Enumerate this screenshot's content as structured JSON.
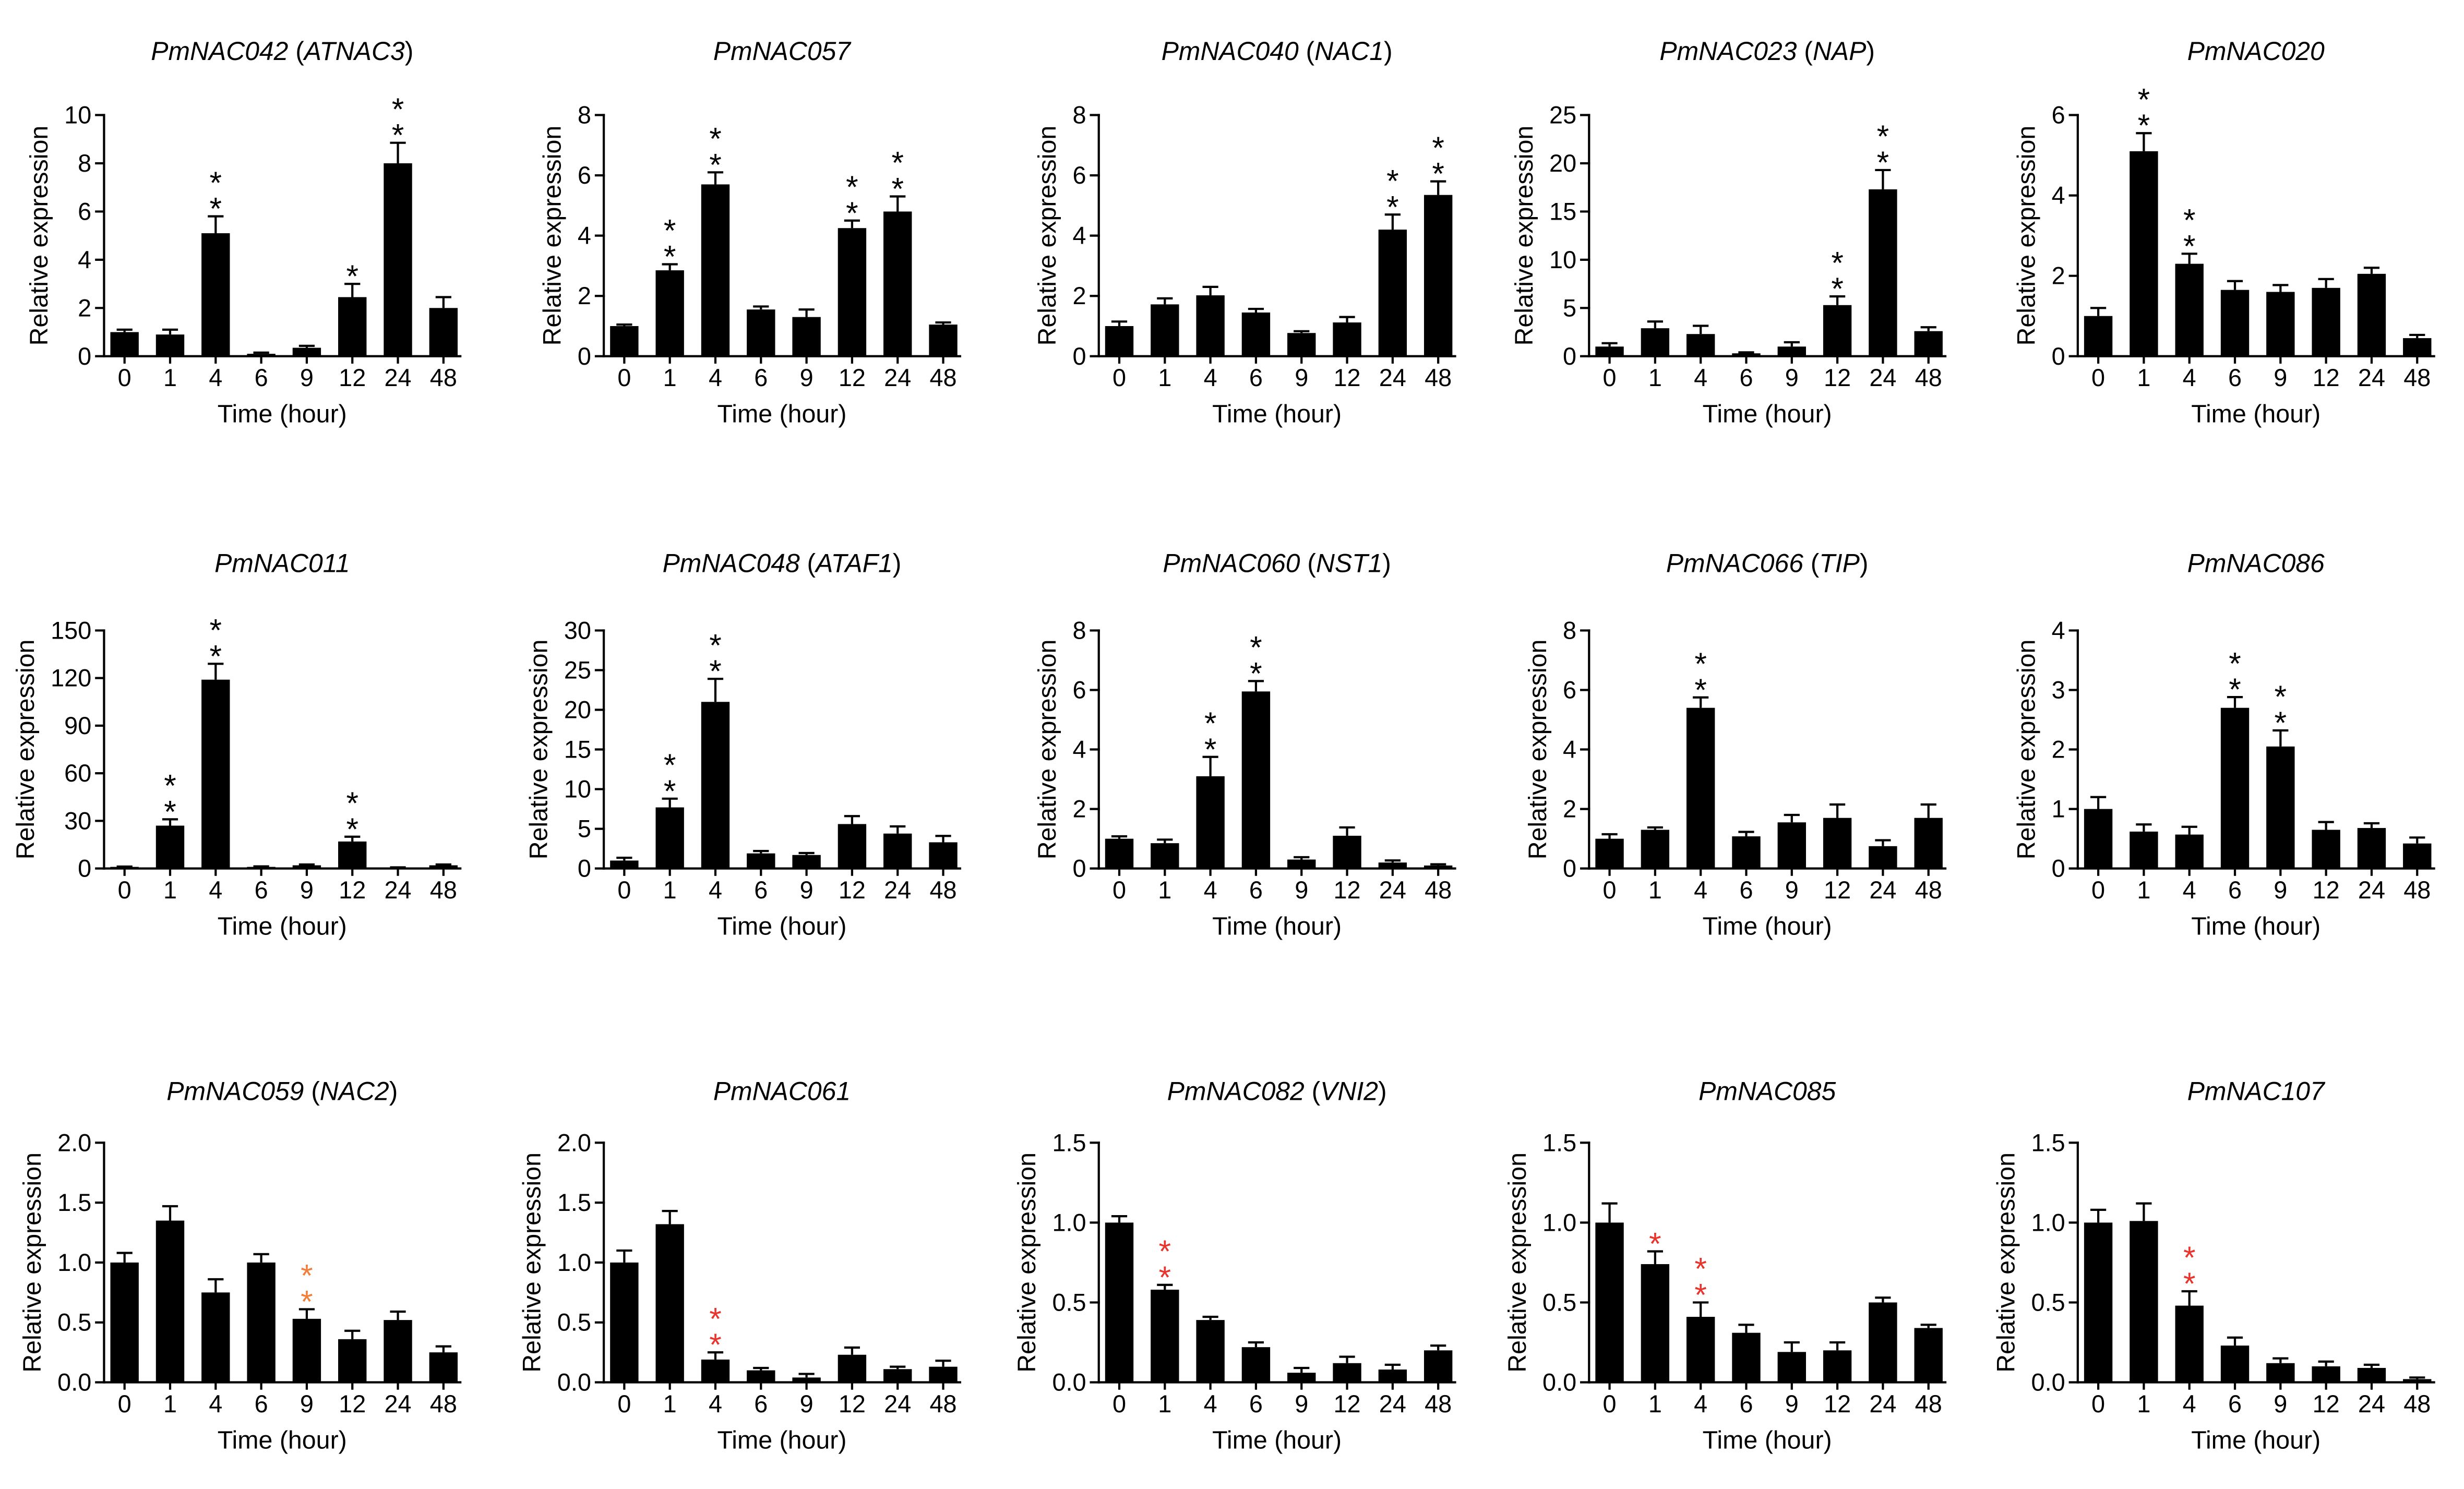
{
  "chart_data": [
    {
      "type": "bar",
      "title": "PmNAC042 (ATNAC3)",
      "xlabel": "Time (hour)",
      "ylabel": "Relative expression",
      "categories": [
        "0",
        "1",
        "4",
        "6",
        "9",
        "12",
        "24",
        "48"
      ],
      "values": [
        1.0,
        0.9,
        5.1,
        0.1,
        0.35,
        2.45,
        8.0,
        2.0
      ],
      "errors": [
        0.1,
        0.2,
        0.7,
        0.05,
        0.08,
        0.55,
        0.85,
        0.45
      ],
      "significance": [
        "",
        "",
        "**",
        "",
        "",
        "*",
        "**",
        ""
      ],
      "star_color": "#000000",
      "ylim": [
        0,
        10
      ],
      "yticks": [
        "0",
        "2",
        "4",
        "6",
        "8",
        "10"
      ]
    },
    {
      "type": "bar",
      "title": "PmNAC057",
      "xlabel": "Time (hour)",
      "ylabel": "Relative expression",
      "categories": [
        "0",
        "1",
        "4",
        "6",
        "9",
        "12",
        "24",
        "48"
      ],
      "values": [
        1.0,
        2.85,
        5.7,
        1.55,
        1.3,
        4.25,
        4.8,
        1.05
      ],
      "errors": [
        0.05,
        0.2,
        0.4,
        0.1,
        0.25,
        0.25,
        0.5,
        0.07
      ],
      "significance": [
        "",
        "**",
        "**",
        "",
        "",
        "**",
        "**",
        ""
      ],
      "star_color": "#000000",
      "ylim": [
        0,
        8
      ],
      "yticks": [
        "0",
        "2",
        "4",
        "6",
        "8"
      ]
    },
    {
      "type": "bar",
      "title": "PmNAC040 (NAC1)",
      "xlabel": "Time (hour)",
      "ylabel": "Relative expression",
      "categories": [
        "0",
        "1",
        "4",
        "6",
        "9",
        "12",
        "24",
        "48"
      ],
      "values": [
        1.0,
        1.72,
        2.02,
        1.45,
        0.77,
        1.12,
        4.2,
        5.35
      ],
      "errors": [
        0.15,
        0.2,
        0.28,
        0.12,
        0.06,
        0.18,
        0.5,
        0.45
      ],
      "significance": [
        "",
        "",
        "",
        "",
        "",
        "",
        "**",
        "**"
      ],
      "star_color": "#000000",
      "ylim": [
        0,
        8
      ],
      "yticks": [
        "0",
        "2",
        "4",
        "6",
        "8"
      ]
    },
    {
      "type": "bar",
      "title": "PmNAC023 (NAP)",
      "xlabel": "Time (hour)",
      "ylabel": "Relative expression",
      "categories": [
        "0",
        "1",
        "4",
        "6",
        "9",
        "12",
        "24",
        "48"
      ],
      "values": [
        1.0,
        2.9,
        2.3,
        0.3,
        1.0,
        5.3,
        17.3,
        2.6
      ],
      "errors": [
        0.35,
        0.7,
        0.85,
        0.1,
        0.45,
        0.9,
        2.0,
        0.4
      ],
      "significance": [
        "",
        "",
        "",
        "",
        "",
        "**",
        "**",
        ""
      ],
      "star_color": "#000000",
      "ylim": [
        0,
        25
      ],
      "yticks": [
        "0",
        "5",
        "10",
        "15",
        "20",
        "25"
      ]
    },
    {
      "type": "bar",
      "title": "PmNAC020",
      "xlabel": "Time (hour)",
      "ylabel": "Relative expression",
      "categories": [
        "0",
        "1",
        "4",
        "6",
        "9",
        "12",
        "24",
        "48"
      ],
      "values": [
        1.0,
        5.1,
        2.3,
        1.65,
        1.6,
        1.7,
        2.05,
        0.45
      ],
      "errors": [
        0.2,
        0.45,
        0.25,
        0.22,
        0.17,
        0.22,
        0.15,
        0.08
      ],
      "significance": [
        "",
        "**",
        "**",
        "",
        "",
        "",
        "",
        ""
      ],
      "star_color": "#000000",
      "ylim": [
        0,
        6
      ],
      "yticks": [
        "0",
        "2",
        "4",
        "6"
      ]
    },
    {
      "type": "bar",
      "title": "PmNAC011",
      "xlabel": "Time (hour)",
      "ylabel": "Relative expression",
      "categories": [
        "0",
        "1",
        "4",
        "6",
        "9",
        "12",
        "24",
        "48"
      ],
      "values": [
        1.0,
        27,
        119,
        1.0,
        2.0,
        17,
        0.5,
        2.0
      ],
      "errors": [
        0.2,
        4,
        10,
        0.3,
        0.5,
        3,
        0.2,
        0.5
      ],
      "significance": [
        "",
        "**",
        "**",
        "",
        "",
        "**",
        "",
        ""
      ],
      "star_color": "#000000",
      "ylim": [
        0,
        150
      ],
      "yticks": [
        "0",
        "30",
        "60",
        "90",
        "120",
        "150"
      ]
    },
    {
      "type": "bar",
      "title": "PmNAC048 (ATAF1)",
      "xlabel": "Time (hour)",
      "ylabel": "Relative expression",
      "categories": [
        "0",
        "1",
        "4",
        "6",
        "9",
        "12",
        "24",
        "48"
      ],
      "values": [
        1.0,
        7.7,
        21,
        1.9,
        1.7,
        5.6,
        4.4,
        3.3
      ],
      "errors": [
        0.35,
        1.1,
        2.9,
        0.3,
        0.25,
        1.0,
        0.9,
        0.8
      ],
      "significance": [
        "",
        "**",
        "**",
        "",
        "",
        "",
        "",
        ""
      ],
      "star_color": "#000000",
      "ylim": [
        0,
        30
      ],
      "yticks": [
        "0",
        "5",
        "10",
        "15",
        "20",
        "25",
        "30"
      ]
    },
    {
      "type": "bar",
      "title": "PmNAC060 (NST1)",
      "xlabel": "Time (hour)",
      "ylabel": "Relative expression",
      "categories": [
        "0",
        "1",
        "4",
        "6",
        "9",
        "12",
        "24",
        "48"
      ],
      "values": [
        1.0,
        0.85,
        3.1,
        5.95,
        0.3,
        1.1,
        0.2,
        0.1
      ],
      "errors": [
        0.08,
        0.12,
        0.65,
        0.35,
        0.08,
        0.28,
        0.07,
        0.04
      ],
      "significance": [
        "",
        "",
        "**",
        "**",
        "",
        "",
        "",
        ""
      ],
      "star_color": "#000000",
      "ylim": [
        0,
        8
      ],
      "yticks": [
        "0",
        "2",
        "4",
        "6",
        "8"
      ]
    },
    {
      "type": "bar",
      "title": "PmNAC066 (TIP)",
      "xlabel": "Time (hour)",
      "ylabel": "Relative expression",
      "categories": [
        "0",
        "1",
        "4",
        "6",
        "9",
        "12",
        "24",
        "48"
      ],
      "values": [
        1.0,
        1.3,
        5.4,
        1.08,
        1.55,
        1.7,
        0.75,
        1.7
      ],
      "errors": [
        0.15,
        0.08,
        0.35,
        0.15,
        0.25,
        0.45,
        0.2,
        0.45
      ],
      "significance": [
        "",
        "",
        "**",
        "",
        "",
        "",
        "",
        ""
      ],
      "star_color": "#000000",
      "ylim": [
        0,
        8
      ],
      "yticks": [
        "0",
        "2",
        "4",
        "6",
        "8"
      ]
    },
    {
      "type": "bar",
      "title": "PmNAC086",
      "xlabel": "Time (hour)",
      "ylabel": "Relative expression",
      "categories": [
        "0",
        "1",
        "4",
        "6",
        "9",
        "12",
        "24",
        "48"
      ],
      "values": [
        1.0,
        0.62,
        0.57,
        2.7,
        2.05,
        0.65,
        0.68,
        0.42
      ],
      "errors": [
        0.2,
        0.12,
        0.13,
        0.18,
        0.27,
        0.13,
        0.08,
        0.1
      ],
      "significance": [
        "",
        "",
        "",
        "**",
        "**",
        "",
        "",
        ""
      ],
      "star_color": "#000000",
      "ylim": [
        0,
        4
      ],
      "yticks": [
        "0",
        "1",
        "2",
        "3",
        "4"
      ]
    },
    {
      "type": "bar",
      "title": "PmNAC059 (NAC2)",
      "xlabel": "Time (hour)",
      "ylabel": "Relative expression",
      "categories": [
        "0",
        "1",
        "4",
        "6",
        "9",
        "12",
        "24",
        "48"
      ],
      "values": [
        1.0,
        1.35,
        0.75,
        1.0,
        0.53,
        0.36,
        0.52,
        0.25
      ],
      "errors": [
        0.08,
        0.12,
        0.11,
        0.07,
        0.08,
        0.07,
        0.07,
        0.05
      ],
      "significance": [
        "",
        "",
        "",
        "",
        "**",
        "",
        "",
        ""
      ],
      "star_color": "#ef7f3a",
      "ylim": [
        0,
        2
      ],
      "yticks": [
        "0.0",
        "0.5",
        "1.0",
        "1.5",
        "2.0"
      ]
    },
    {
      "type": "bar",
      "title": "PmNAC061",
      "xlabel": "Time (hour)",
      "ylabel": "Relative expression",
      "categories": [
        "0",
        "1",
        "4",
        "6",
        "9",
        "12",
        "24",
        "48"
      ],
      "values": [
        1.0,
        1.32,
        0.19,
        0.1,
        0.04,
        0.23,
        0.11,
        0.13
      ],
      "errors": [
        0.1,
        0.11,
        0.06,
        0.02,
        0.03,
        0.06,
        0.02,
        0.05
      ],
      "significance": [
        "",
        "",
        "**",
        "",
        "",
        "",
        "",
        ""
      ],
      "star_color": "#e8342c",
      "ylim": [
        0,
        2
      ],
      "yticks": [
        "0.0",
        "0.5",
        "1.0",
        "1.5",
        "2.0"
      ]
    },
    {
      "type": "bar",
      "title": "PmNAC082 (VNI2)",
      "xlabel": "Time (hour)",
      "ylabel": "Relative expression",
      "categories": [
        "0",
        "1",
        "4",
        "6",
        "9",
        "12",
        "24",
        "48"
      ],
      "values": [
        1.0,
        0.58,
        0.39,
        0.22,
        0.06,
        0.12,
        0.08,
        0.2
      ],
      "errors": [
        0.04,
        0.03,
        0.02,
        0.03,
        0.03,
        0.04,
        0.03,
        0.03
      ],
      "significance": [
        "",
        "**",
        "",
        "",
        "",
        "",
        "",
        ""
      ],
      "star_color": "#e8342c",
      "ylim": [
        0,
        1.5
      ],
      "yticks": [
        "0.0",
        "0.5",
        "1.0",
        "1.5"
      ]
    },
    {
      "type": "bar",
      "title": "PmNAC085",
      "xlabel": "Time (hour)",
      "ylabel": "Relative expression",
      "categories": [
        "0",
        "1",
        "4",
        "6",
        "9",
        "12",
        "24",
        "48"
      ],
      "values": [
        1.0,
        0.74,
        0.41,
        0.31,
        0.19,
        0.2,
        0.5,
        0.34
      ],
      "errors": [
        0.12,
        0.08,
        0.09,
        0.05,
        0.06,
        0.05,
        0.03,
        0.02
      ],
      "significance": [
        "",
        "*",
        "**",
        "",
        "",
        "",
        "",
        ""
      ],
      "star_color": "#e8342c",
      "ylim": [
        0,
        1.5
      ],
      "yticks": [
        "0.0",
        "0.5",
        "1.0",
        "1.5"
      ]
    },
    {
      "type": "bar",
      "title": "PmNAC107",
      "xlabel": "Time (hour)",
      "ylabel": "Relative expression",
      "categories": [
        "0",
        "1",
        "4",
        "6",
        "9",
        "12",
        "24",
        "48"
      ],
      "values": [
        1.0,
        1.01,
        0.48,
        0.23,
        0.12,
        0.1,
        0.09,
        0.02
      ],
      "errors": [
        0.08,
        0.11,
        0.09,
        0.05,
        0.03,
        0.03,
        0.02,
        0.01
      ],
      "significance": [
        "",
        "",
        "**",
        "",
        "",
        "",
        "",
        ""
      ],
      "star_color": "#e8342c",
      "ylim": [
        0,
        1.5
      ],
      "yticks": [
        "0.0",
        "0.5",
        "1.0",
        "1.5"
      ]
    }
  ]
}
